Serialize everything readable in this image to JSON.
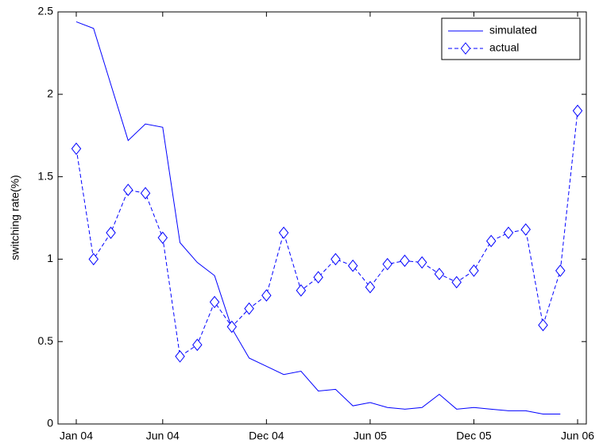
{
  "chart_data": {
    "type": "line",
    "ylabel": "switching rate(%)",
    "categories": [
      "Jan 04",
      null,
      null,
      null,
      null,
      "Jun 04",
      null,
      null,
      null,
      null,
      null,
      "Dec 04",
      null,
      null,
      null,
      null,
      null,
      "Jun 05",
      null,
      null,
      null,
      null,
      null,
      "Dec 05",
      null,
      null,
      null,
      null,
      null,
      "Jun 06"
    ],
    "series": [
      {
        "name": "simulated",
        "color": "#0000ff",
        "style": "solid",
        "marker": "none",
        "values": [
          2.44,
          2.4,
          2.06,
          1.72,
          1.82,
          1.8,
          1.1,
          0.98,
          0.9,
          0.58,
          0.4,
          0.35,
          0.3,
          0.32,
          0.2,
          0.21,
          0.11,
          0.13,
          0.1,
          0.09,
          0.1,
          0.18,
          0.09,
          0.1,
          0.09,
          0.08,
          0.08,
          0.06,
          0.06,
          null
        ]
      },
      {
        "name": "actual",
        "color": "#0000ff",
        "style": "dashed",
        "marker": "diamond",
        "values": [
          1.67,
          1.0,
          1.16,
          1.42,
          1.4,
          1.13,
          0.41,
          0.48,
          0.74,
          0.59,
          0.7,
          0.78,
          1.16,
          0.81,
          0.89,
          1.0,
          0.96,
          0.83,
          0.97,
          0.99,
          0.98,
          0.91,
          0.86,
          0.93,
          1.11,
          1.16,
          1.18,
          0.6,
          0.93,
          1.9
        ]
      }
    ],
    "ylim": [
      0,
      2.5
    ],
    "yticks": [
      0,
      0.5,
      1,
      1.5,
      2,
      2.5
    ],
    "grid": false,
    "legend": "top-right"
  }
}
